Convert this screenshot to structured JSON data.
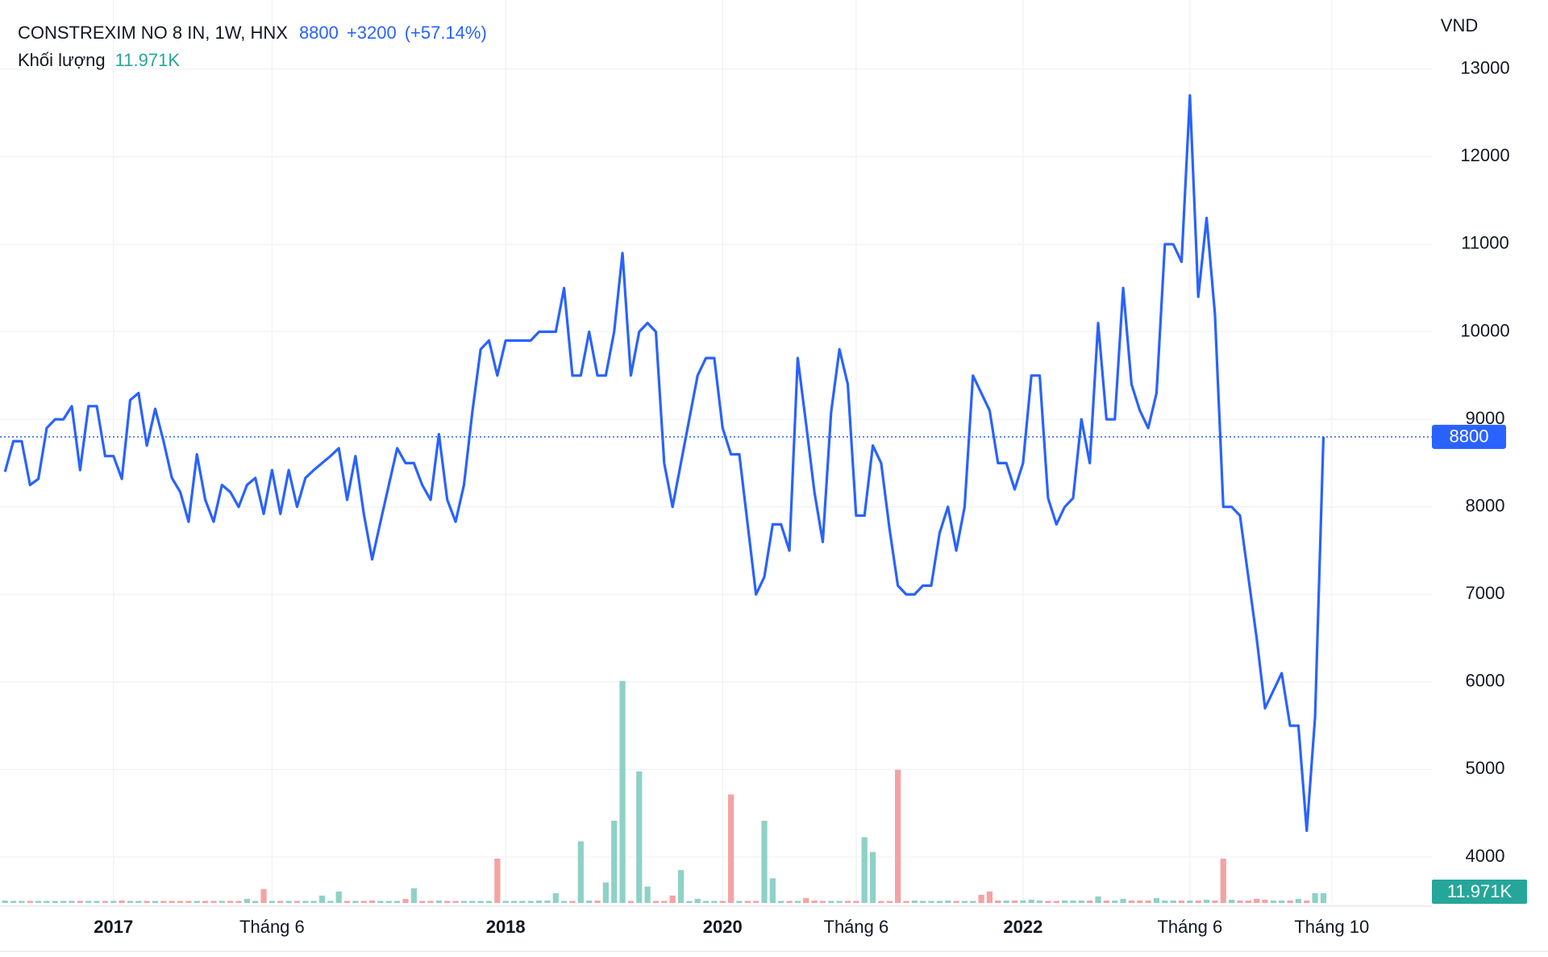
{
  "chart_data": {
    "type": "line",
    "title": "CONSTREXIM NO 8 IN, 1W, HNX",
    "last_price": 8800,
    "change_label": "+3200",
    "change_pct_label": "(+57.14%)",
    "volume_title": "Khối lượng",
    "volume_last_label": "11.971K",
    "currency": "VND",
    "color": "#2962ff",
    "volume_up_color": "#8fd1c6",
    "volume_down_color": "#f4a3a3",
    "ylim": [
      3475,
      13790
    ],
    "yticks": [
      4000,
      5000,
      6000,
      7000,
      8000,
      9000,
      10000,
      11000,
      12000,
      13000
    ],
    "volume_lim": [
      0,
      300000
    ],
    "xlim": [
      -0.6,
      171
    ],
    "xticks": [
      {
        "value": 13,
        "label": "2017"
      },
      {
        "value": 32,
        "label": "Tháng 6"
      },
      {
        "value": 60,
        "label": "2018"
      },
      {
        "value": 86,
        "label": "2020"
      },
      {
        "value": 102,
        "label": "Tháng 6"
      },
      {
        "value": 122,
        "label": "2022"
      },
      {
        "value": 142,
        "label": "Tháng 6"
      },
      {
        "value": 159,
        "label": "Tháng 10"
      }
    ],
    "grid": true,
    "values": [
      8400,
      8750,
      8750,
      8250,
      8320,
      8900,
      9000,
      9000,
      9150,
      8420,
      9150,
      9150,
      8580,
      8580,
      8320,
      9220,
      9300,
      8700,
      9120,
      8750,
      8330,
      8170,
      7830,
      8600,
      8080,
      7830,
      8250,
      8170,
      8000,
      8250,
      8330,
      7920,
      8420,
      7920,
      8420,
      8000,
      8330,
      8420,
      8500,
      8580,
      8670,
      8080,
      8580,
      7920,
      7400,
      7830,
      8250,
      8670,
      8500,
      8500,
      8250,
      8080,
      8830,
      8080,
      7830,
      8250,
      9080,
      9800,
      9900,
      9500,
      9900,
      9900,
      9900,
      9900,
      10000,
      10000,
      10000,
      10500,
      9500,
      9500,
      10000,
      9500,
      9500,
      10000,
      10900,
      9500,
      10000,
      10100,
      10000,
      8500,
      8000,
      8500,
      9000,
      9500,
      9700,
      9700,
      8900,
      8600,
      8600,
      7800,
      7000,
      7200,
      7800,
      7800,
      7500,
      9700,
      8950,
      8170,
      7600,
      9080,
      9800,
      9400,
      7900,
      7900,
      8700,
      8500,
      7750,
      7100,
      7000,
      7000,
      7100,
      7100,
      7700,
      8000,
      7500,
      8000,
      9500,
      9300,
      9100,
      8500,
      8500,
      8200,
      8500,
      9500,
      9500,
      8100,
      7800,
      8000,
      8100,
      9000,
      8500,
      10100,
      9000,
      9000,
      10500,
      9400,
      9100,
      8900,
      9300,
      11000,
      11000,
      10800,
      12700,
      10400,
      11300,
      10200,
      8000,
      8000,
      7900,
      7200,
      6500,
      5700,
      5900,
      6100,
      5500,
      5500,
      4300,
      5600,
      8800
    ],
    "volumes": [
      3000,
      2500,
      2500,
      2500,
      2500,
      2500,
      2500,
      2500,
      2500,
      2500,
      2500,
      2500,
      2500,
      2500,
      3000,
      2500,
      2500,
      2500,
      2500,
      2500,
      2500,
      2500,
      2500,
      2500,
      2500,
      2500,
      2500,
      2500,
      2500,
      5000,
      2500,
      17000,
      2500,
      2500,
      2500,
      2500,
      2500,
      2500,
      9000,
      2500,
      14000,
      2500,
      2500,
      2500,
      3000,
      2500,
      2500,
      2500,
      5000,
      18000,
      2500,
      2500,
      3000,
      2500,
      2500,
      2500,
      2500,
      2500,
      2500,
      54000,
      2500,
      2500,
      2500,
      2500,
      3000,
      3000,
      12000,
      2500,
      2500,
      75000,
      3000,
      3000,
      25000,
      100000,
      270000,
      2500,
      160000,
      20000,
      2500,
      2500,
      9000,
      40000,
      2500,
      5000,
      2500,
      2500,
      2500,
      132000,
      2500,
      2500,
      2500,
      100000,
      30000,
      2500,
      2500,
      2500,
      6000,
      3000,
      2500,
      2500,
      2500,
      2500,
      2500,
      80000,
      62000,
      2500,
      2500,
      162000,
      2500,
      3000,
      2500,
      2500,
      2500,
      3000,
      2500,
      2500,
      2500,
      10000,
      14000,
      3000,
      3000,
      3000,
      3000,
      4000,
      3000,
      2500,
      2500,
      3000,
      3000,
      3000,
      3000,
      8000,
      3000,
      3000,
      5000,
      3000,
      3000,
      3000,
      6000,
      3000,
      3000,
      3000,
      3000,
      3000,
      4000,
      3000,
      54000,
      4000,
      3000,
      3000,
      5000,
      4000,
      3000,
      3000,
      3000,
      5000,
      3000,
      12000,
      11971
    ]
  }
}
